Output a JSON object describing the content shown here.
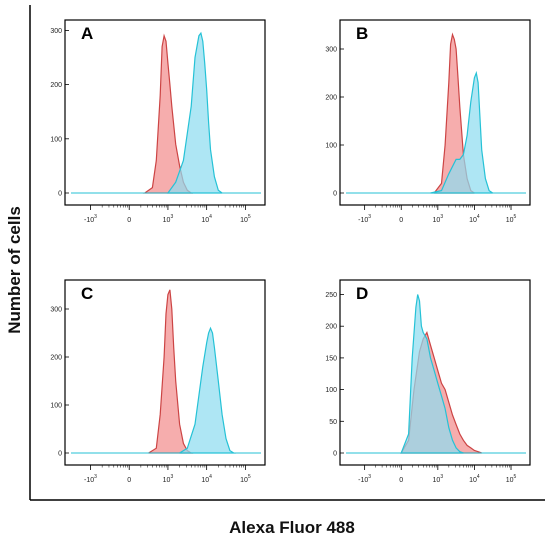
{
  "figure": {
    "ylabel": "Number of cells",
    "xlabel": "Alexa Fluor 488",
    "colors": {
      "red_fill": "#f28e8e",
      "red_line": "#cc4444",
      "cyan_fill": "#8fdcf0",
      "cyan_line": "#25c2d6",
      "overlap": "#9aa9c4"
    }
  },
  "chart_data": [
    {
      "type": "area",
      "panel": "A",
      "x_scale": "biexponential",
      "x_ticks": [
        {
          "base": "10",
          "exp": "3",
          "sign": "-"
        },
        {
          "base": "0"
        },
        {
          "base": "10",
          "exp": "3"
        },
        {
          "base": "10",
          "exp": "4"
        },
        {
          "base": "10",
          "exp": "5"
        }
      ],
      "y_ticks": [
        "0",
        "100",
        "200",
        "300"
      ],
      "ylim": [
        0,
        310
      ],
      "series": [
        {
          "color": "red",
          "x": [
            0.4,
            0.6,
            0.7,
            0.8,
            0.85,
            0.9,
            0.95,
            1.0,
            1.05,
            1.1,
            1.2,
            1.3,
            1.4,
            1.5,
            1.6
          ],
          "y": [
            0,
            10,
            60,
            180,
            270,
            290,
            280,
            240,
            200,
            160,
            90,
            50,
            20,
            5,
            0
          ]
        },
        {
          "color": "cyan",
          "x": [
            1.0,
            1.2,
            1.4,
            1.6,
            1.7,
            1.8,
            1.85,
            1.9,
            1.95,
            2.0,
            2.05,
            2.1,
            2.2,
            2.3,
            2.4
          ],
          "y": [
            0,
            20,
            60,
            160,
            250,
            290,
            295,
            280,
            240,
            190,
            130,
            80,
            30,
            5,
            0
          ]
        }
      ]
    },
    {
      "type": "area",
      "panel": "B",
      "x_scale": "biexponential",
      "x_ticks": [
        {
          "base": "10",
          "exp": "3",
          "sign": "-"
        },
        {
          "base": "0"
        },
        {
          "base": "10",
          "exp": "3"
        },
        {
          "base": "10",
          "exp": "4"
        },
        {
          "base": "10",
          "exp": "5"
        }
      ],
      "y_ticks": [
        "0",
        "100",
        "200",
        "300"
      ],
      "ylim": [
        0,
        350
      ],
      "series": [
        {
          "color": "red",
          "x": [
            0.9,
            1.1,
            1.2,
            1.3,
            1.35,
            1.4,
            1.45,
            1.5,
            1.55,
            1.6,
            1.7,
            1.8,
            1.9,
            2.0
          ],
          "y": [
            0,
            20,
            100,
            230,
            310,
            330,
            320,
            300,
            240,
            180,
            80,
            30,
            5,
            0
          ]
        },
        {
          "color": "cyan",
          "x": [
            0.8,
            1.1,
            1.3,
            1.5,
            1.6,
            1.7,
            1.8,
            1.9,
            2.0,
            2.05,
            2.1,
            2.15,
            2.2,
            2.3,
            2.4,
            2.5
          ],
          "y": [
            0,
            5,
            40,
            70,
            70,
            80,
            120,
            190,
            240,
            250,
            230,
            160,
            90,
            30,
            5,
            0
          ]
        }
      ]
    },
    {
      "type": "area",
      "panel": "C",
      "x_scale": "biexponential",
      "x_ticks": [
        {
          "base": "10",
          "exp": "3",
          "sign": "-"
        },
        {
          "base": "0"
        },
        {
          "base": "10",
          "exp": "3"
        },
        {
          "base": "10",
          "exp": "4"
        },
        {
          "base": "10",
          "exp": "5"
        }
      ],
      "y_ticks": [
        "0",
        "100",
        "200",
        "300"
      ],
      "ylim": [
        0,
        350
      ],
      "series": [
        {
          "color": "red",
          "x": [
            0.5,
            0.7,
            0.8,
            0.9,
            0.95,
            1.0,
            1.05,
            1.1,
            1.15,
            1.2,
            1.3,
            1.4,
            1.5,
            1.6
          ],
          "y": [
            0,
            10,
            80,
            200,
            290,
            330,
            340,
            300,
            220,
            150,
            60,
            20,
            5,
            0
          ]
        },
        {
          "color": "cyan",
          "x": [
            1.3,
            1.5,
            1.7,
            1.8,
            1.9,
            2.0,
            2.05,
            2.1,
            2.15,
            2.2,
            2.3,
            2.4,
            2.5,
            2.6,
            2.7
          ],
          "y": [
            0,
            10,
            60,
            120,
            180,
            230,
            250,
            260,
            250,
            220,
            150,
            80,
            30,
            5,
            0
          ]
        }
      ]
    },
    {
      "type": "area",
      "panel": "D",
      "x_scale": "biexponential",
      "x_ticks": [
        {
          "base": "10",
          "exp": "3",
          "sign": "-"
        },
        {
          "base": "0"
        },
        {
          "base": "10",
          "exp": "3"
        },
        {
          "base": "10",
          "exp": "4"
        },
        {
          "base": "10",
          "exp": "5"
        }
      ],
      "y_ticks": [
        "0",
        "50",
        "100",
        "150",
        "200",
        "250"
      ],
      "ylim": [
        0,
        265
      ],
      "series": [
        {
          "color": "red",
          "x": [
            0.0,
            0.2,
            0.35,
            0.5,
            0.6,
            0.7,
            0.8,
            0.9,
            1.0,
            1.1,
            1.2,
            1.3,
            1.4,
            1.5,
            1.6,
            1.7,
            1.8,
            1.9,
            2.0,
            2.1,
            2.2
          ],
          "y": [
            0,
            20,
            100,
            160,
            180,
            190,
            170,
            150,
            130,
            110,
            100,
            80,
            60,
            45,
            30,
            20,
            12,
            8,
            4,
            2,
            0
          ]
        },
        {
          "color": "cyan",
          "x": [
            0.0,
            0.2,
            0.3,
            0.4,
            0.45,
            0.5,
            0.55,
            0.6,
            0.7,
            0.8,
            0.9,
            1.0,
            1.1,
            1.2,
            1.3,
            1.4,
            1.5,
            1.6,
            1.7
          ],
          "y": [
            0,
            30,
            150,
            230,
            250,
            240,
            200,
            190,
            180,
            150,
            130,
            110,
            90,
            70,
            40,
            20,
            8,
            2,
            0
          ]
        }
      ]
    }
  ]
}
